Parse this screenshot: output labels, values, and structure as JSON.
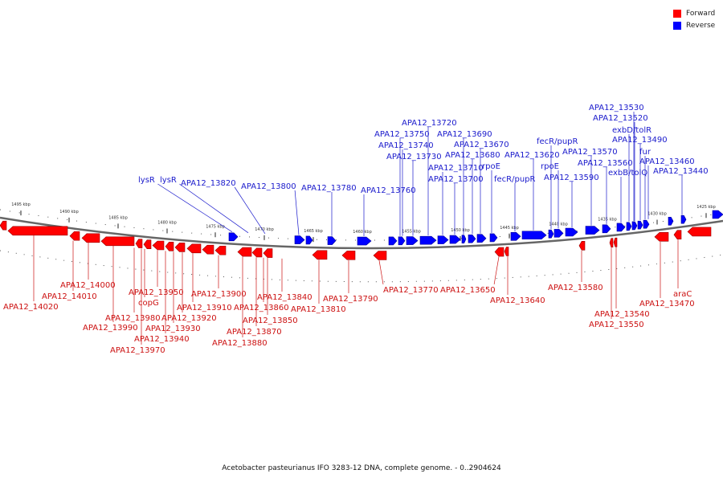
{
  "legend": {
    "forward_label": "Forward",
    "reverse_label": "Reverse",
    "forward_color": "#ff0000",
    "reverse_color": "#0000ff"
  },
  "caption": "Acetobacter pasteurianus IFO 3283-12 DNA, complete genome. - 0..2904624",
  "kbp_ticks": [
    "1495 kbp",
    "1490 kbp",
    "1485 kbp",
    "1480 kbp",
    "1475 kbp",
    "1470 kbp",
    "1465 kbp",
    "1460 kbp",
    "1455 kbp",
    "1450 kbp",
    "1445 kbp",
    "1440 kbp",
    "1435 kbp",
    "1430 kbp",
    "1425 kbp"
  ],
  "reverse_labels": [
    "lysR",
    "lysR",
    "APA12_13820",
    "APA12_13800",
    "APA12_13780",
    "APA12_13760",
    "APA12_13750",
    "APA12_13740",
    "APA12_13730",
    "APA12_13720",
    "APA12_13710",
    "APA12_13700",
    "APA12_13690",
    "APA12_13680",
    "APA12_13670",
    "rpoE",
    "fecR/pupR",
    "APA12_13620",
    "fecR/pupR",
    "rpoE",
    "APA12_13590",
    "APA12_13570",
    "APA12_13560",
    "exbB/tolQ",
    "exbD/tolR",
    "APA12_13530",
    "APA12_13520",
    "APA12_13490",
    "fur",
    "APA12_13460",
    "APA12_13440"
  ],
  "forward_labels": [
    "APA12_14020",
    "APA12_14010",
    "APA12_14000",
    "APA12_13990",
    "APA12_13980",
    "APA12_13970",
    "copG",
    "APA12_13950",
    "APA12_13940",
    "APA12_13930",
    "APA12_13920",
    "APA12_13910",
    "APA12_13900",
    "APA12_13880",
    "APA12_13870",
    "APA12_13860",
    "APA12_13850",
    "APA12_13840",
    "APA12_13810",
    "APA12_13790",
    "APA12_13770",
    "APA12_13650",
    "APA12_13640",
    "APA12_13580",
    "APA12_13550",
    "APA12_13540",
    "APA12_13470",
    "araC"
  ]
}
